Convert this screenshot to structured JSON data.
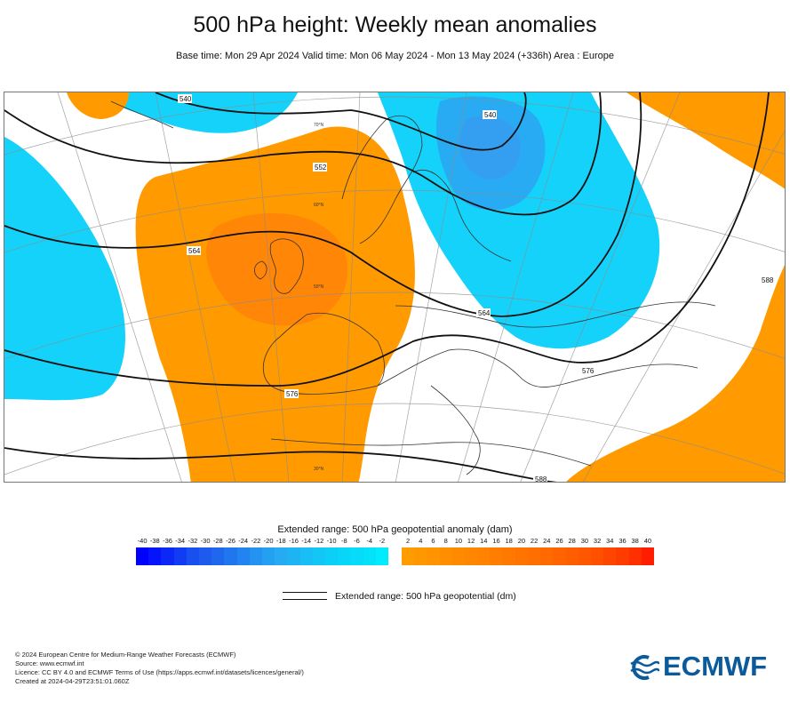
{
  "header": {
    "title": "500 hPa height: Weekly mean anomalies",
    "subtitle": "Base time: Mon 29 Apr 2024 Valid time: Mon 06 May 2024 - Mon 13 May 2024 (+336h) Area : Europe"
  },
  "map": {
    "contour_labels": [
      "540",
      "540",
      "552",
      "564",
      "564",
      "576",
      "576",
      "588",
      "588"
    ],
    "graticule_labels": [
      "70°N",
      "60°N",
      "50°N",
      "30°N"
    ],
    "colors": {
      "positive_anomaly": "#ff9900",
      "negative_anomaly": "#00ccff",
      "strong_negative": "#1e9bf0",
      "strong_positive": "#ff7a10"
    }
  },
  "legend": {
    "anomaly_title": "Extended range: 500 hPa geopotential anomaly (dam)",
    "negative_ticks": [
      "-40",
      "-38",
      "-36",
      "-34",
      "-32",
      "-30",
      "-28",
      "-26",
      "-24",
      "-22",
      "-20",
      "-18",
      "-16",
      "-14",
      "-12",
      "-10",
      "-8",
      "-6",
      "-4",
      "-2"
    ],
    "positive_ticks": [
      "2",
      "4",
      "6",
      "8",
      "10",
      "12",
      "14",
      "16",
      "18",
      "20",
      "22",
      "24",
      "26",
      "28",
      "30",
      "32",
      "34",
      "36",
      "38",
      "40"
    ],
    "negative_colors": [
      "#0000ff",
      "#0614fb",
      "#0c28f7",
      "#123cf3",
      "#1850ef",
      "#1e5aed",
      "#1f68ee",
      "#2076ef",
      "#2284f0",
      "#2392f1",
      "#24a0f2",
      "#25aaf3",
      "#1eb4f4",
      "#18bef5",
      "#12c6f6",
      "#0ccff7",
      "#08d6f8",
      "#06dcf9",
      "#04e2fa",
      "#00ebfb"
    ],
    "positive_colors": [
      "#ff9c00",
      "#ff9700",
      "#ff9300",
      "#ff8f00",
      "#ff8a00",
      "#ff8600",
      "#ff8200",
      "#ff7d00",
      "#ff7900",
      "#ff7400",
      "#ff6f00",
      "#ff6a00",
      "#ff6400",
      "#ff5e00",
      "#ff5700",
      "#ff5000",
      "#ff4600",
      "#ff3c00",
      "#ff3000",
      "#ff1f00"
    ],
    "line_label": "Extended range: 500 hPa geopotential (dm)"
  },
  "footer": {
    "lines": [
      "© 2024 European Centre for Medium-Range Weather Forecasts (ECMWF)",
      "Source: www.ecmwf.int",
      "Licence: CC BY 4.0 and ECMWF Terms of Use (https://apps.ecmwf.int/datasets/licences/general/)",
      "Created at 2024-04-29T23:51:01.060Z"
    ]
  },
  "logo": {
    "text": "ECMWF",
    "color": "#0b5b9c"
  }
}
